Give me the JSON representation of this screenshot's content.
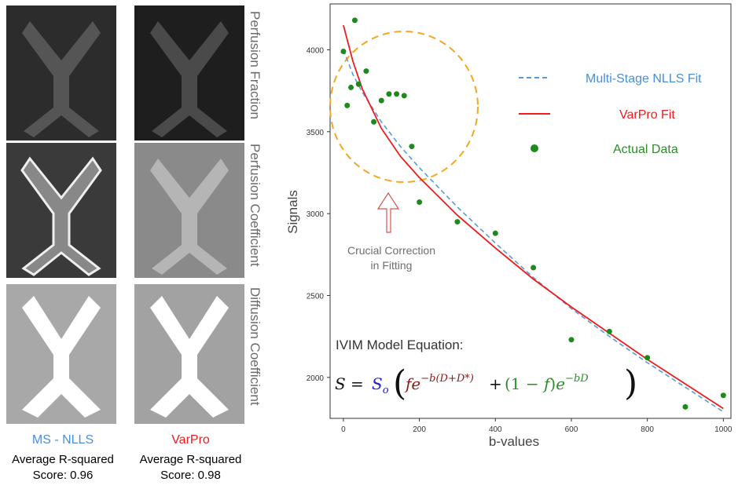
{
  "panels": {
    "row_labels": [
      "Perfusion Fraction",
      "Perfusion Coefficient",
      "Diffusion Coefficient"
    ],
    "methods": [
      {
        "name": "MS - NLLS",
        "color": "#4a8fd4",
        "score_label": "Average R-squared",
        "score_text": "Score: 0.96"
      },
      {
        "name": "VarPro",
        "color": "#ee1c1c",
        "score_label": "Average R-squared",
        "score_text": "Score: 0.98"
      }
    ]
  },
  "chart_data": {
    "type": "scatter",
    "xlabel": "b-values",
    "ylabel": "Signals",
    "xlim": [
      -35,
      1020
    ],
    "ylim": [
      1750,
      4280
    ],
    "xticks": [
      0,
      200,
      400,
      600,
      800,
      1000
    ],
    "yticks": [
      2000,
      2500,
      3000,
      3500,
      4000
    ],
    "grid": false,
    "legend_position": "top-right",
    "series": [
      {
        "name": "Multi-Stage NLLS Fit",
        "kind": "line",
        "style": "dashed",
        "color": "#5b9bd5",
        "x": [
          0,
          25,
          50,
          100,
          150,
          200,
          300,
          400,
          500,
          600,
          700,
          800,
          900,
          1000
        ],
        "y": [
          4000,
          3850,
          3740,
          3560,
          3410,
          3280,
          3040,
          2820,
          2610,
          2420,
          2250,
          2090,
          1940,
          1790
        ]
      },
      {
        "name": "VarPro Fit",
        "kind": "line",
        "style": "solid",
        "color": "#ee1c1c",
        "x": [
          0,
          25,
          50,
          100,
          150,
          200,
          300,
          400,
          500,
          600,
          700,
          800,
          900,
          1000
        ],
        "y": [
          4150,
          3930,
          3760,
          3520,
          3350,
          3220,
          2990,
          2790,
          2600,
          2430,
          2270,
          2110,
          1960,
          1810
        ]
      },
      {
        "name": "Actual Data",
        "kind": "scatter",
        "color": "#1e8a1e",
        "x": [
          0,
          10,
          20,
          30,
          40,
          60,
          80,
          100,
          120,
          140,
          160,
          180,
          200,
          300,
          400,
          500,
          600,
          700,
          800,
          900,
          1000
        ],
        "y": [
          3990,
          3660,
          3770,
          4180,
          3790,
          3870,
          3560,
          3690,
          3730,
          3730,
          3720,
          3410,
          3070,
          2950,
          2880,
          2670,
          2230,
          2280,
          2120,
          1820,
          1890
        ]
      }
    ],
    "annotations": {
      "callout_line1": "Crucial Correction",
      "callout_line2": "in Fitting",
      "equation_title": "IVIM Model Equation:"
    },
    "colors": {
      "highlight_circle": "#f5a623",
      "arrow": "#d9534f",
      "nlls": "#4a8fd4",
      "varpro": "#ee1c1c",
      "data": "#2e8b2e"
    }
  }
}
